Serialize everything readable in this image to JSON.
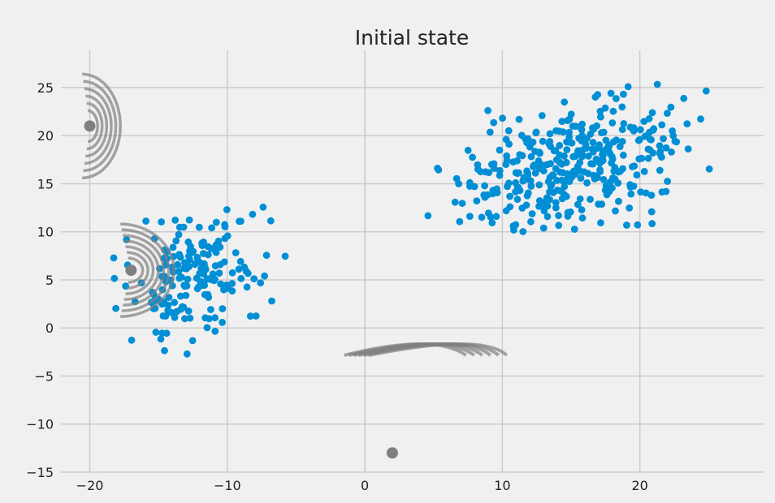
{
  "chart_data": {
    "type": "scatter",
    "title": "Initial state",
    "xlabel": "",
    "ylabel": "",
    "xlim": [
      -22.1,
      29.0
    ],
    "ylim": [
      -15,
      28.2
    ],
    "xticks": [
      -20,
      -10,
      0,
      10,
      20
    ],
    "yticks": [
      -15,
      -10,
      -5,
      0,
      5,
      10,
      15,
      20,
      25
    ],
    "grid": true,
    "colors": {
      "background": "#f0f0f0",
      "grid": "#cbcbcb",
      "points": "#008fd5",
      "components": "#7f7f7f"
    },
    "gaussian_components": [
      {
        "mean": [
          -20,
          21
        ],
        "shape": "narrow-tall",
        "orientation": "opens-left"
      },
      {
        "mean": [
          -17,
          6
        ],
        "shape": "round",
        "orientation": "opens-left"
      },
      {
        "mean": [
          2,
          -13
        ],
        "shape": "strongly-skewed",
        "orientation": "elongated-left",
        "contour_center": [
          5,
          -2
        ]
      }
    ],
    "clusters": [
      {
        "label_region": "lower-left",
        "x_range": [
          -20,
          -5
        ],
        "y_range": [
          -3,
          14
        ],
        "count": 180
      },
      {
        "label_region": "upper-right",
        "x_range": [
          3,
          27
        ],
        "y_range": [
          7.5,
          26
        ],
        "count": 360
      }
    ]
  }
}
